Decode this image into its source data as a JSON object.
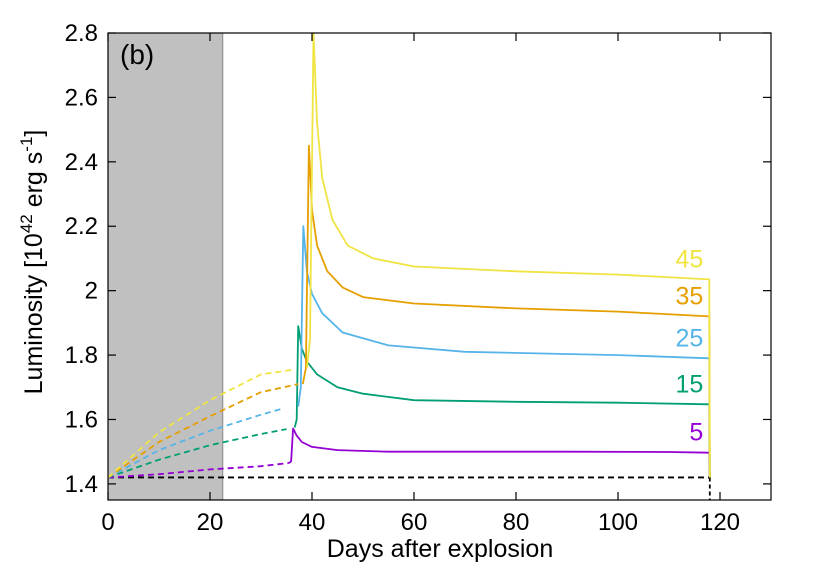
{
  "chart_data": {
    "type": "line",
    "panel_label": "(b)",
    "xlabel": "Days after explosion",
    "ylabel_main": "Luminosity [10",
    "ylabel_exp": "42",
    "ylabel_unit": " erg s",
    "ylabel_unit_exp": "-1",
    "ylabel_close": "]",
    "xlim": [
      0,
      130
    ],
    "ylim": [
      1.35,
      2.8
    ],
    "xticks": [
      0,
      20,
      40,
      60,
      80,
      100,
      120
    ],
    "yticks": [
      1.4,
      1.6,
      1.8,
      2.0,
      2.2,
      2.4,
      2.6,
      2.8
    ],
    "ytick_labels": [
      "1.4",
      "1.6",
      "1.8",
      "2",
      "2.2",
      "2.4",
      "2.6",
      "2.8"
    ],
    "shaded_region": {
      "x0": 0,
      "x1": 22.5,
      "color": "#c0c0c0"
    },
    "baseline": {
      "y": 1.42,
      "x0": 0,
      "x1": 118,
      "style": "dashed",
      "color": "#000000"
    },
    "series": [
      {
        "name": "5",
        "color": "#9400d3",
        "dashed": [
          [
            0,
            1.42
          ],
          [
            10,
            1.43
          ],
          [
            20,
            1.445
          ],
          [
            30,
            1.455
          ],
          [
            35.5,
            1.465
          ]
        ],
        "solid": [
          [
            35.5,
            1.465
          ],
          [
            35.9,
            1.47
          ],
          [
            36.3,
            1.572
          ],
          [
            37,
            1.55
          ],
          [
            38,
            1.53
          ],
          [
            40,
            1.515
          ],
          [
            45,
            1.505
          ],
          [
            55,
            1.5
          ],
          [
            70,
            1.5
          ],
          [
            90,
            1.5
          ],
          [
            110,
            1.499
          ],
          [
            117.9,
            1.497
          ],
          [
            118,
            1.42
          ]
        ]
      },
      {
        "name": "15",
        "color": "#009e73",
        "dashed": [
          [
            0,
            1.42
          ],
          [
            10,
            1.475
          ],
          [
            20,
            1.52
          ],
          [
            30,
            1.555
          ],
          [
            35,
            1.57
          ]
        ],
        "solid": [
          [
            36.6,
            1.575
          ],
          [
            37,
            1.6
          ],
          [
            37.3,
            1.89
          ],
          [
            38,
            1.82
          ],
          [
            39,
            1.78
          ],
          [
            41,
            1.74
          ],
          [
            45,
            1.7
          ],
          [
            50,
            1.68
          ],
          [
            60,
            1.66
          ],
          [
            80,
            1.655
          ],
          [
            100,
            1.652
          ],
          [
            117.9,
            1.647
          ],
          [
            118,
            1.42
          ]
        ]
      },
      {
        "name": "25",
        "color": "#56b4e9",
        "dashed": [
          [
            0,
            1.42
          ],
          [
            10,
            1.505
          ],
          [
            20,
            1.565
          ],
          [
            30,
            1.615
          ],
          [
            34.5,
            1.635
          ]
        ],
        "solid": [
          [
            37.3,
            1.64
          ],
          [
            37.8,
            1.7
          ],
          [
            38.3,
            2.2
          ],
          [
            39,
            2.06
          ],
          [
            40,
            1.99
          ],
          [
            42,
            1.93
          ],
          [
            46,
            1.87
          ],
          [
            55,
            1.83
          ],
          [
            70,
            1.81
          ],
          [
            100,
            1.8
          ],
          [
            117.9,
            1.79
          ],
          [
            118,
            1.42
          ]
        ]
      },
      {
        "name": "35",
        "color": "#e69f00",
        "dashed": [
          [
            0,
            1.42
          ],
          [
            10,
            1.53
          ],
          [
            20,
            1.61
          ],
          [
            30,
            1.685
          ],
          [
            37.3,
            1.71
          ]
        ],
        "solid": [
          [
            38.2,
            1.71
          ],
          [
            38.8,
            1.76
          ],
          [
            39.4,
            2.45
          ],
          [
            40,
            2.25
          ],
          [
            41,
            2.14
          ],
          [
            43,
            2.06
          ],
          [
            46,
            2.01
          ],
          [
            50,
            1.98
          ],
          [
            60,
            1.96
          ],
          [
            80,
            1.945
          ],
          [
            100,
            1.935
          ],
          [
            117.9,
            1.92
          ],
          [
            118,
            1.42
          ]
        ]
      },
      {
        "name": "45",
        "color": "#f0e442",
        "dashed": [
          [
            0,
            1.42
          ],
          [
            10,
            1.56
          ],
          [
            20,
            1.66
          ],
          [
            30,
            1.74
          ],
          [
            36.5,
            1.755
          ]
        ],
        "solid": [
          [
            39,
            1.76
          ],
          [
            39.6,
            1.85
          ],
          [
            40.3,
            2.8
          ],
          [
            41,
            2.52
          ],
          [
            42,
            2.35
          ],
          [
            44,
            2.22
          ],
          [
            47,
            2.14
          ],
          [
            52,
            2.1
          ],
          [
            60,
            2.075
          ],
          [
            80,
            2.06
          ],
          [
            100,
            2.05
          ],
          [
            117.9,
            2.035
          ],
          [
            118,
            1.42
          ]
        ]
      }
    ]
  }
}
